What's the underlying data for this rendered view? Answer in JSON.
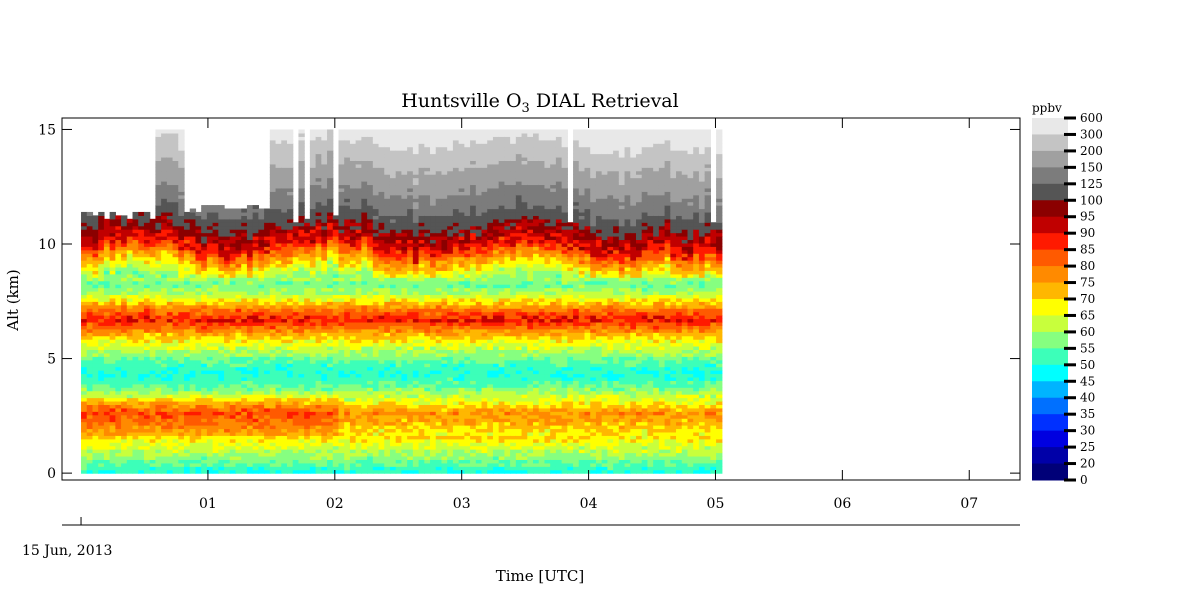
{
  "chart_data": {
    "type": "heatmap",
    "title": "Huntsville O",
    "title_subscript": "3",
    "title_suffix": " DIAL Retrieval",
    "xlabel": "Time [UTC]",
    "ylabel": "Alt (km)",
    "date_label": "15 Jun, 2013",
    "x_tick_labels": [
      "01",
      "02",
      "03",
      "04",
      "05",
      "06",
      "07"
    ],
    "x_tick_values": [
      1,
      2,
      3,
      4,
      5,
      6,
      7
    ],
    "y_tick_labels": [
      "0",
      "5",
      "10",
      "15"
    ],
    "y_tick_values": [
      0,
      5,
      10,
      15
    ],
    "xlim": [
      -0.15,
      7.4
    ],
    "ylim": [
      -0.3,
      15.5
    ],
    "data_x_range": [
      0,
      5.05
    ],
    "data_alt_range": [
      0,
      15
    ],
    "colorbar": {
      "unit": "ppbv",
      "levels": [
        "600",
        "300",
        "200",
        "150",
        "125",
        "100",
        "95",
        "90",
        "85",
        "80",
        "75",
        "70",
        "65",
        "60",
        "55",
        "50",
        "45",
        "40",
        "35",
        "30",
        "25",
        "20",
        "0"
      ],
      "colors": [
        "#e8e8e8",
        "#c4c4c4",
        "#a0a0a0",
        "#7c7c7c",
        "#555555",
        "#8b0000",
        "#c00000",
        "#ff1a00",
        "#ff5a00",
        "#ff8a00",
        "#ffb700",
        "#ffff00",
        "#c8ff3c",
        "#86ff80",
        "#3cffb9",
        "#00ffff",
        "#00b4ff",
        "#0070ff",
        "#0030ff",
        "#0000e0",
        "#0000a8",
        "#000078"
      ]
    },
    "profile_ppbv": [
      {
        "alt": 0.0,
        "ppbv": 50
      },
      {
        "alt": 0.3,
        "ppbv": 54
      },
      {
        "alt": 0.6,
        "ppbv": 58
      },
      {
        "alt": 1.0,
        "ppbv": 63
      },
      {
        "alt": 1.4,
        "ppbv": 68
      },
      {
        "alt": 1.8,
        "ppbv": 72
      },
      {
        "alt": 2.2,
        "ppbv": 77
      },
      {
        "alt": 2.6,
        "ppbv": 80
      },
      {
        "alt": 3.0,
        "ppbv": 70
      },
      {
        "alt": 3.4,
        "ppbv": 61
      },
      {
        "alt": 3.8,
        "ppbv": 54
      },
      {
        "alt": 4.2,
        "ppbv": 51
      },
      {
        "alt": 4.6,
        "ppbv": 52
      },
      {
        "alt": 5.0,
        "ppbv": 57
      },
      {
        "alt": 5.4,
        "ppbv": 63
      },
      {
        "alt": 5.8,
        "ppbv": 69
      },
      {
        "alt": 6.2,
        "ppbv": 78
      },
      {
        "alt": 6.6,
        "ppbv": 89
      },
      {
        "alt": 7.0,
        "ppbv": 82
      },
      {
        "alt": 7.4,
        "ppbv": 70
      },
      {
        "alt": 7.8,
        "ppbv": 60
      },
      {
        "alt": 8.2,
        "ppbv": 56
      },
      {
        "alt": 8.6,
        "ppbv": 62
      },
      {
        "alt": 9.0,
        "ppbv": 70
      },
      {
        "alt": 9.4,
        "ppbv": 78
      },
      {
        "alt": 9.8,
        "ppbv": 88
      },
      {
        "alt": 10.2,
        "ppbv": 93
      },
      {
        "alt": 10.6,
        "ppbv": 97
      },
      {
        "alt": 11.0,
        "ppbv": 105
      },
      {
        "alt": 11.5,
        "ppbv": 130
      },
      {
        "alt": 12.0,
        "ppbv": 140
      },
      {
        "alt": 12.5,
        "ppbv": 160
      },
      {
        "alt": 13.0,
        "ppbv": 180
      },
      {
        "alt": 13.5,
        "ppbv": 210
      },
      {
        "alt": 14.0,
        "ppbv": 250
      },
      {
        "alt": 14.5,
        "ppbv": 320
      },
      {
        "alt": 15.0,
        "ppbv": 350
      }
    ]
  }
}
